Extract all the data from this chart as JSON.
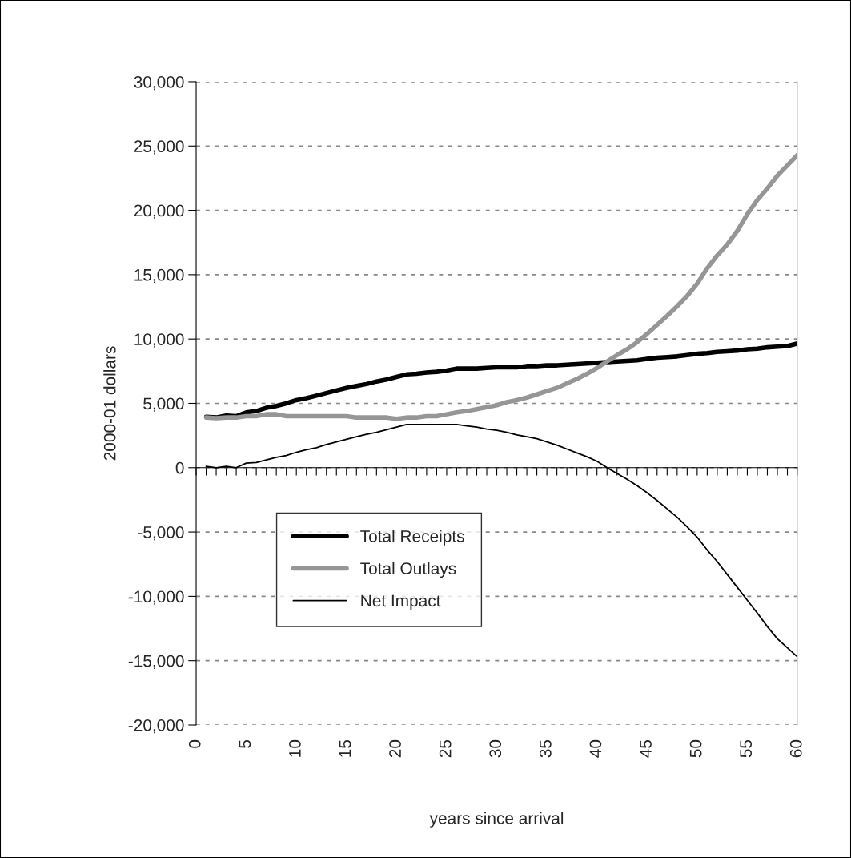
{
  "chart_data": {
    "type": "line",
    "xlabel": "years since arrival",
    "ylabel": "2000-01 dollars",
    "x": [
      1,
      2,
      3,
      4,
      5,
      6,
      7,
      8,
      9,
      10,
      11,
      12,
      13,
      14,
      15,
      16,
      17,
      18,
      19,
      20,
      21,
      22,
      23,
      24,
      25,
      26,
      27,
      28,
      29,
      30,
      31,
      32,
      33,
      34,
      35,
      36,
      37,
      38,
      39,
      40,
      41,
      42,
      43,
      44,
      45,
      46,
      47,
      48,
      49,
      50,
      51,
      52,
      53,
      54,
      55,
      56,
      57,
      58,
      59,
      60
    ],
    "series": [
      {
        "name": "Total Receipts",
        "color": "#000000",
        "values": [
          3950,
          3900,
          4050,
          4000,
          4300,
          4400,
          4650,
          4800,
          5000,
          5250,
          5400,
          5600,
          5800,
          6000,
          6200,
          6350,
          6500,
          6700,
          6850,
          7050,
          7250,
          7300,
          7400,
          7450,
          7550,
          7700,
          7700,
          7700,
          7750,
          7800,
          7800,
          7800,
          7900,
          7900,
          7950,
          7950,
          8000,
          8050,
          8100,
          8150,
          8200,
          8250,
          8300,
          8350,
          8450,
          8550,
          8600,
          8650,
          8750,
          8850,
          8900,
          9000,
          9050,
          9100,
          9200,
          9250,
          9350,
          9400,
          9450,
          9650
        ]
      },
      {
        "name": "Total Outlays",
        "color": "#969696",
        "values": [
          3900,
          3850,
          3900,
          3900,
          4000,
          4000,
          4150,
          4150,
          4000,
          4000,
          4000,
          4000,
          4000,
          4000,
          4000,
          3900,
          3900,
          3900,
          3900,
          3800,
          3900,
          3900,
          4000,
          4000,
          4150,
          4300,
          4400,
          4550,
          4700,
          4850,
          5100,
          5250,
          5450,
          5700,
          5950,
          6200,
          6550,
          6900,
          7300,
          7750,
          8250,
          8750,
          9200,
          9750,
          10400,
          11100,
          11800,
          12550,
          13350,
          14300,
          15500,
          16500,
          17350,
          18400,
          19700,
          20800,
          21700,
          22700,
          23500,
          24300
        ]
      },
      {
        "name": "Net Impact",
        "color": "#000000",
        "values": [
          100,
          0,
          100,
          0,
          350,
          400,
          600,
          800,
          950,
          1200,
          1400,
          1550,
          1800,
          2000,
          2200,
          2400,
          2600,
          2750,
          2950,
          3150,
          3350,
          3350,
          3350,
          3350,
          3350,
          3350,
          3250,
          3150,
          3000,
          2900,
          2750,
          2550,
          2400,
          2250,
          2000,
          1750,
          1450,
          1150,
          850,
          500,
          0,
          -450,
          -900,
          -1400,
          -1950,
          -2550,
          -3200,
          -3850,
          -4600,
          -5400,
          -6400,
          -7300,
          -8300,
          -9300,
          -10300,
          -11300,
          -12350,
          -13300,
          -14000,
          -14700
        ]
      }
    ],
    "xlim": [
      0,
      60
    ],
    "xticks": [
      0,
      {
        "value": 1,
        "label": null
      },
      {
        "value": 2,
        "label": null
      },
      {
        "value": 3,
        "label": null
      },
      {
        "value": 4,
        "label": null
      },
      5,
      {
        "value": 6,
        "label": null
      },
      {
        "value": 7,
        "label": null
      },
      {
        "value": 8,
        "label": null
      },
      {
        "value": 9,
        "label": null
      },
      10,
      {
        "value": 11,
        "label": null
      },
      {
        "value": 12,
        "label": null
      },
      {
        "value": 13,
        "label": null
      },
      {
        "value": 14,
        "label": null
      },
      15,
      {
        "value": 16,
        "label": null
      },
      {
        "value": 17,
        "label": null
      },
      {
        "value": 18,
        "label": null
      },
      {
        "value": 19,
        "label": null
      },
      20,
      {
        "value": 21,
        "label": null
      },
      {
        "value": 22,
        "label": null
      },
      {
        "value": 23,
        "label": null
      },
      {
        "value": 24,
        "label": null
      },
      25,
      {
        "value": 26,
        "label": null
      },
      {
        "value": 27,
        "label": null
      },
      {
        "value": 28,
        "label": null
      },
      {
        "value": 29,
        "label": null
      },
      30,
      {
        "value": 31,
        "label": null
      },
      {
        "value": 32,
        "label": null
      },
      {
        "value": 33,
        "label": null
      },
      {
        "value": 34,
        "label": null
      },
      35,
      {
        "value": 36,
        "label": null
      },
      {
        "value": 37,
        "label": null
      },
      {
        "value": 38,
        "label": null
      },
      {
        "value": 39,
        "label": null
      },
      40,
      {
        "value": 41,
        "label": null
      },
      {
        "value": 42,
        "label": null
      },
      {
        "value": 43,
        "label": null
      },
      {
        "value": 44,
        "label": null
      },
      45,
      {
        "value": 46,
        "label": null
      },
      {
        "value": 47,
        "label": null
      },
      {
        "value": 48,
        "label": null
      },
      {
        "value": 49,
        "label": null
      },
      50,
      {
        "value": 51,
        "label": null
      },
      {
        "value": 52,
        "label": null
      },
      {
        "value": 53,
        "label": null
      },
      {
        "value": 54,
        "label": null
      },
      55,
      {
        "value": 56,
        "label": null
      },
      {
        "value": 57,
        "label": null
      },
      {
        "value": 58,
        "label": null
      },
      {
        "value": 59,
        "label": null
      },
      60
    ],
    "ylim": [
      -20000,
      30000
    ],
    "yticks": [
      {
        "value": -20000,
        "label": "-20,000"
      },
      {
        "value": -15000,
        "label": "-15,000"
      },
      {
        "value": -10000,
        "label": "-10,000"
      },
      {
        "value": -5000,
        "label": "-5,000"
      },
      {
        "value": 0,
        "label": "0"
      },
      {
        "value": 5000,
        "label": "5,000"
      },
      {
        "value": 10000,
        "label": "10,000"
      },
      {
        "value": 15000,
        "label": "15,000"
      },
      {
        "value": 20000,
        "label": "20,000"
      },
      {
        "value": 25000,
        "label": "25,000"
      },
      {
        "value": 30000,
        "label": "30,000"
      }
    ],
    "grid": "y",
    "legend": "bottom left",
    "marker": "none",
    "line_style": "solid"
  }
}
